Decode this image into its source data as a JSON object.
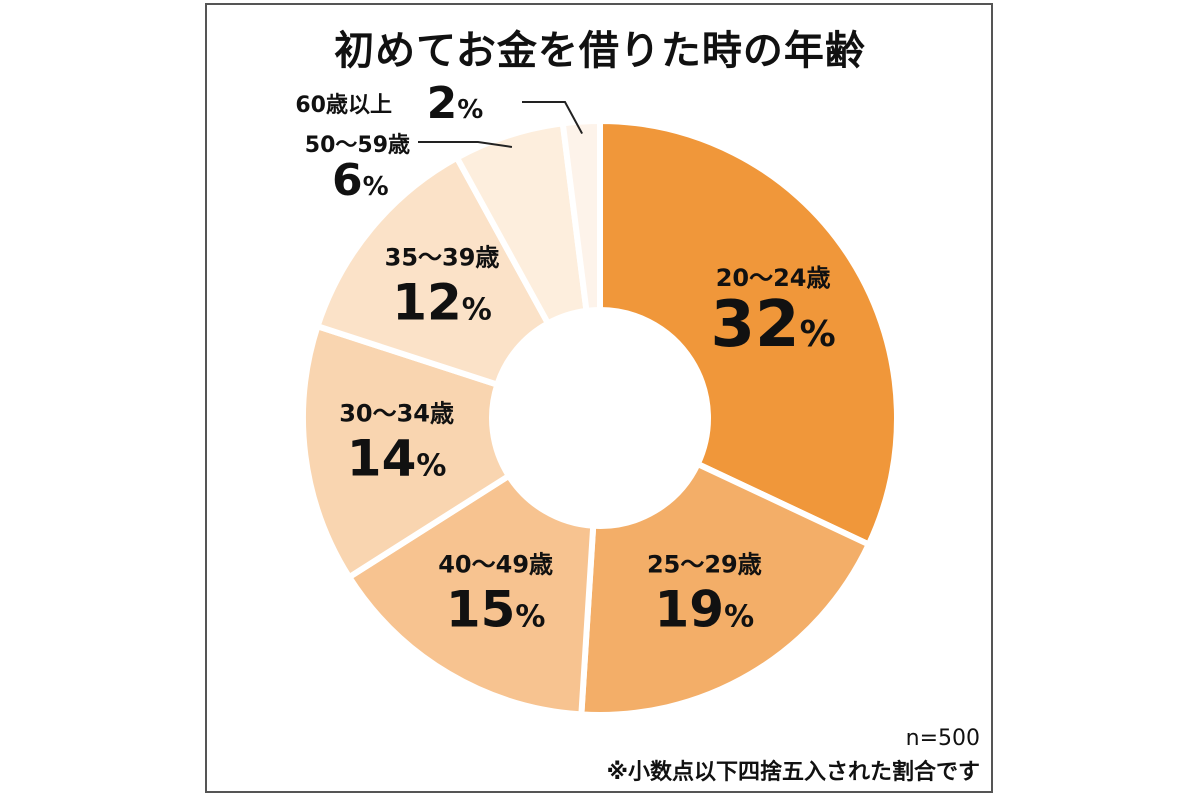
{
  "chart_data": {
    "type": "pie",
    "title": "初めてお金を借りた時の年齢",
    "categories": [
      "20～24歳",
      "25～29歳",
      "40～49歳",
      "30～34歳",
      "35～39歳",
      "50～59歳",
      "60歳以上"
    ],
    "values": [
      32,
      19,
      15,
      14,
      12,
      6,
      2
    ],
    "value_labels": [
      "32",
      "19",
      "15",
      "14",
      "12",
      "6",
      "2"
    ],
    "percent_sign": "%",
    "colors": [
      "#f0973a",
      "#f3ae68",
      "#f7c390",
      "#f9d5b0",
      "#fbe2c8",
      "#fdeedd",
      "#fdf3ea"
    ],
    "notes": [
      "n=500",
      "※小数点以下四捨五入された割合です"
    ]
  }
}
